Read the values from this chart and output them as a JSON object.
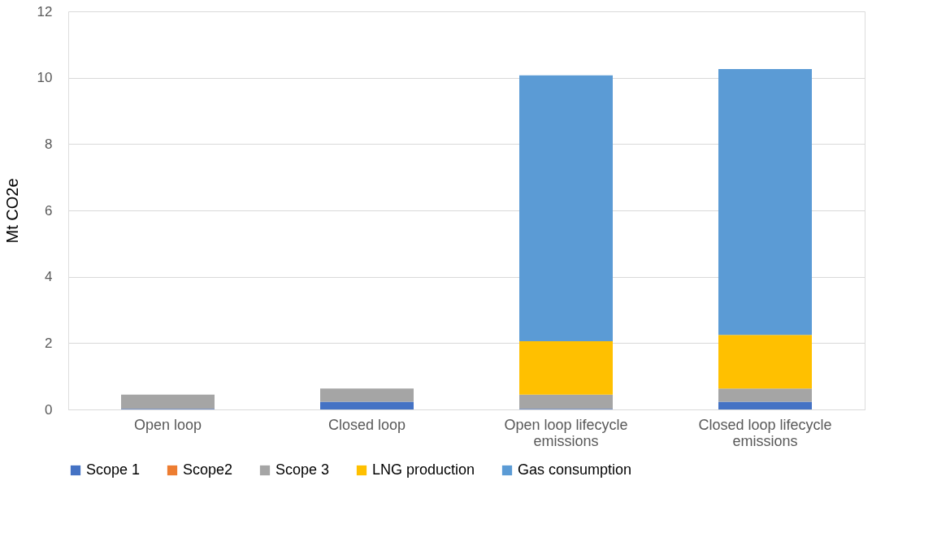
{
  "chart_data": {
    "type": "bar",
    "stacked": true,
    "ylabel": "Mt  CO2e",
    "categories": [
      "Open loop",
      "Closed loop",
      "Open loop lifecycle emissions",
      "Closed loop lifecycle emissions"
    ],
    "series": [
      {
        "name": "Scope 1",
        "color": "#4472c4",
        "values": [
          0.02,
          0.23,
          0.02,
          0.23
        ]
      },
      {
        "name": "Scope2",
        "color": "#ed7d31",
        "values": [
          null,
          null,
          null,
          null
        ]
      },
      {
        "name": "Scope 3",
        "color": "#a5a5a5",
        "values": [
          0.43,
          0.4,
          0.43,
          0.4
        ]
      },
      {
        "name": "LNG production",
        "color": "#ffc000",
        "values": [
          0,
          0,
          1.61,
          1.62
        ]
      },
      {
        "name": "Gas consumption",
        "color": "#5b9bd5",
        "values": [
          0,
          0,
          8.01,
          8.01
        ]
      }
    ],
    "ylim": [
      0,
      12
    ],
    "yticks": [
      0,
      2,
      4,
      6,
      8,
      10,
      12
    ],
    "grid": "y",
    "legend": "bottom"
  }
}
